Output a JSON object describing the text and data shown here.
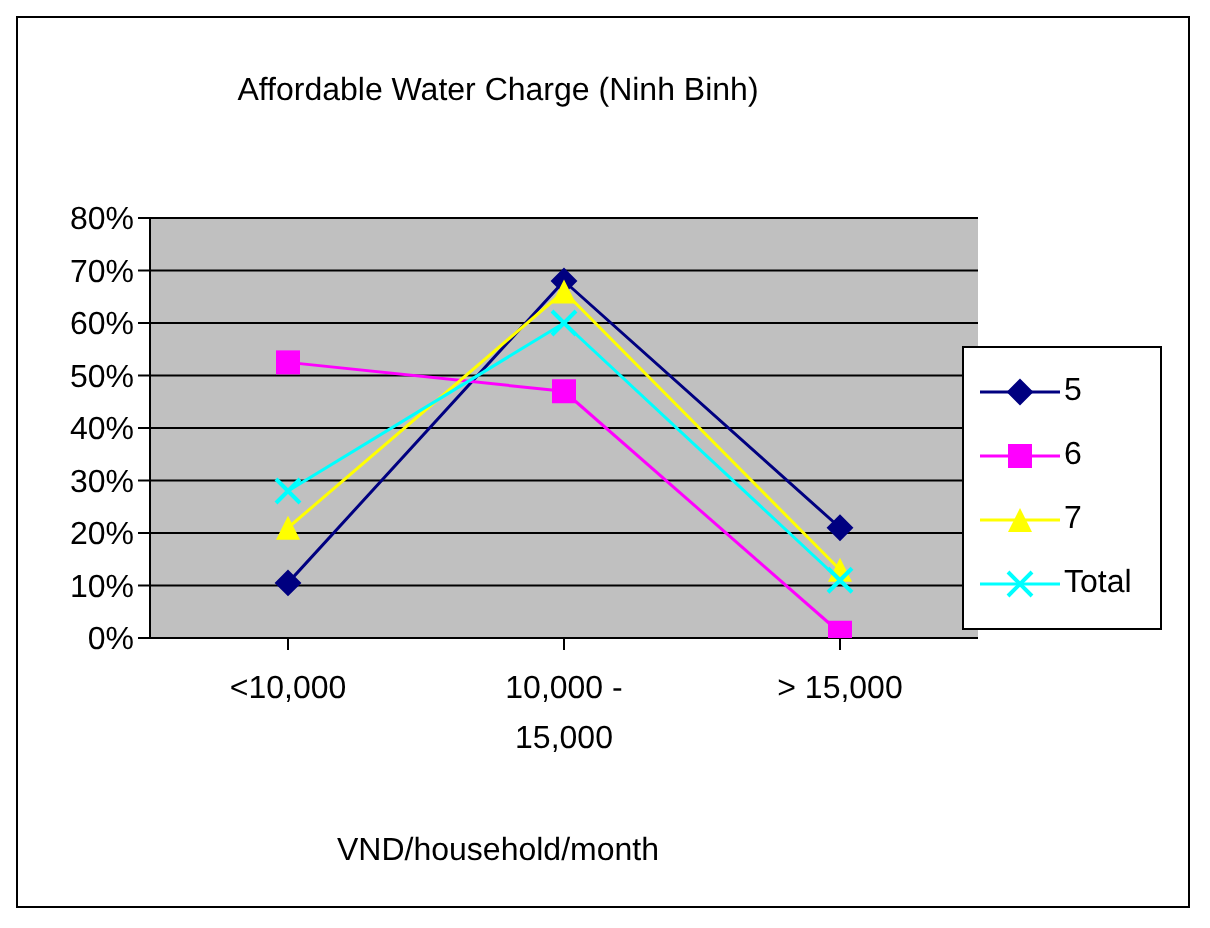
{
  "chart_data": {
    "type": "line",
    "title": "Affordable Water Charge (Ninh Binh)",
    "xlabel": "VND/household/month",
    "categories": [
      "<10,000",
      "10,000 - 15,000",
      "> 15,000"
    ],
    "series": [
      {
        "name": "5",
        "color": "#000080",
        "marker": "diamond",
        "values": [
          10.5,
          68,
          21
        ]
      },
      {
        "name": "6",
        "color": "#ff00ff",
        "marker": "square",
        "values": [
          52.5,
          47,
          1
        ]
      },
      {
        "name": "7",
        "color": "#ffff00",
        "marker": "triangle",
        "values": [
          21,
          66,
          13
        ]
      },
      {
        "name": "Total",
        "color": "#00ffff",
        "marker": "cross",
        "values": [
          28,
          60,
          11
        ]
      }
    ],
    "ylim": [
      0,
      80
    ],
    "yticks": [
      {
        "value": 0,
        "label": "0%"
      },
      {
        "value": 10,
        "label": "10%"
      },
      {
        "value": 20,
        "label": "20%"
      },
      {
        "value": 30,
        "label": "30%"
      },
      {
        "value": 40,
        "label": "40%"
      },
      {
        "value": 50,
        "label": "50%"
      },
      {
        "value": 60,
        "label": "60%"
      },
      {
        "value": 70,
        "label": "70%"
      },
      {
        "value": 80,
        "label": "80%"
      }
    ],
    "grid": "y",
    "legend": "right"
  }
}
